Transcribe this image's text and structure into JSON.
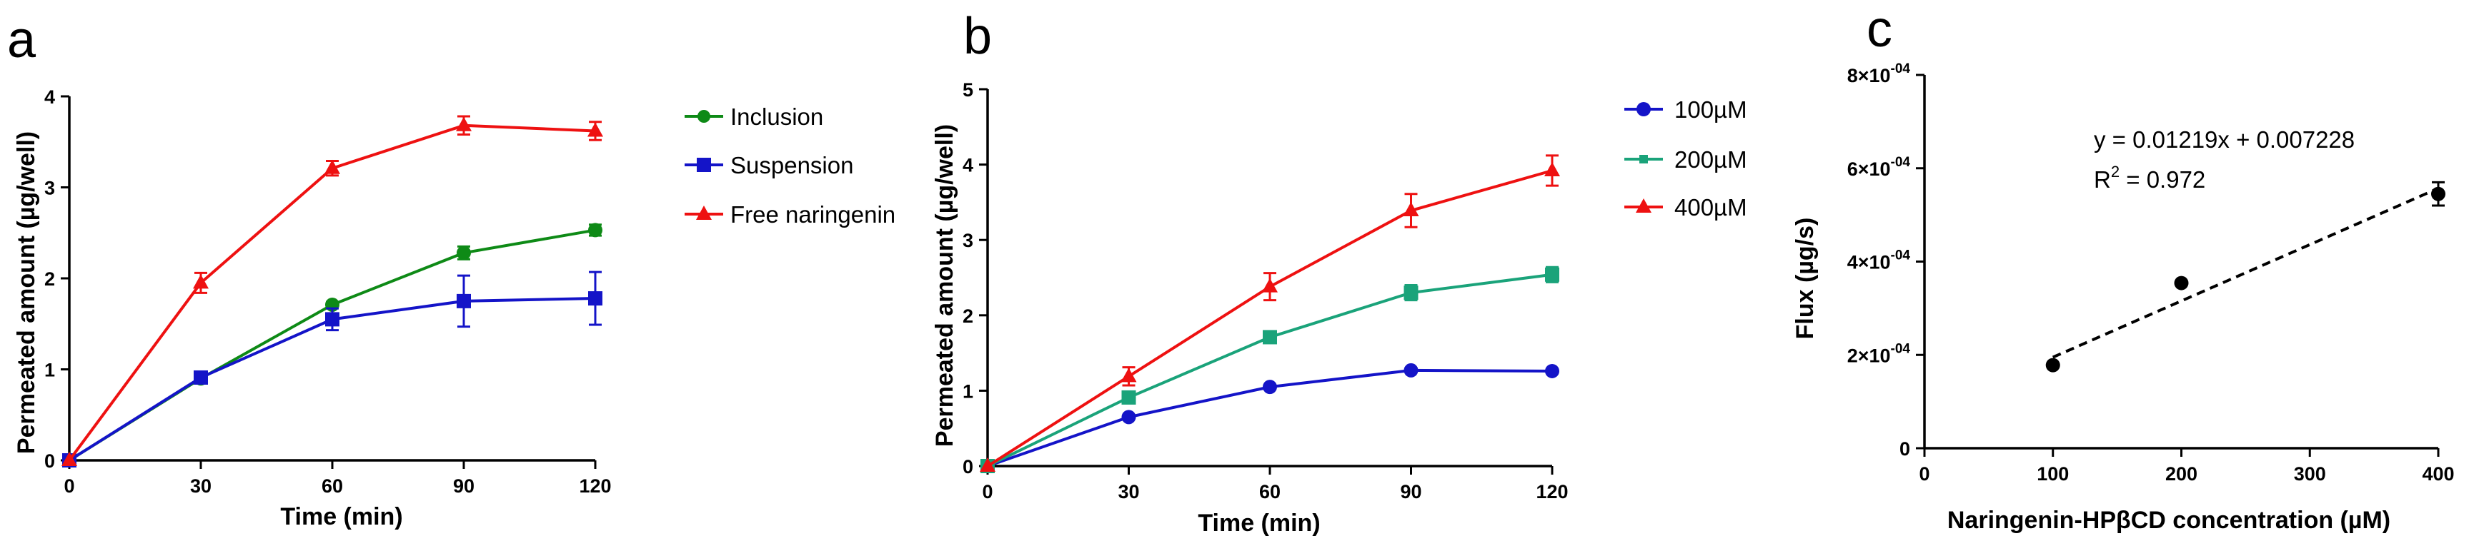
{
  "chart_data": [
    {
      "panel": "a",
      "type": "line",
      "xlabel": "Time (min)",
      "ylabel": "Permeated amount (µg/well)",
      "x": [
        0,
        30,
        60,
        90,
        120
      ],
      "xticks": [
        "0",
        "30",
        "60",
        "90",
        "120"
      ],
      "yticks": [
        "0",
        "1",
        "2",
        "3",
        "4"
      ],
      "xlim": [
        0,
        120
      ],
      "ylim": [
        0,
        4
      ],
      "grid": false,
      "legend_position": "right",
      "series": [
        {
          "name": "Inclusion",
          "color": "#0e8a16",
          "marker": "circle",
          "values": [
            0,
            0.9,
            1.71,
            2.28,
            2.53
          ],
          "errors": [
            0,
            0.03,
            0.03,
            0.07,
            0.06
          ]
        },
        {
          "name": "Suspension",
          "color": "#1414c8",
          "marker": "square",
          "values": [
            0,
            0.91,
            1.55,
            1.75,
            1.78
          ],
          "errors": [
            0,
            0.03,
            0.12,
            0.28,
            0.29
          ]
        },
        {
          "name": "Free naringenin",
          "color": "#ee1111",
          "marker": "triangle",
          "values": [
            0,
            1.95,
            3.21,
            3.68,
            3.62
          ],
          "errors": [
            0,
            0.11,
            0.08,
            0.1,
            0.1
          ]
        }
      ]
    },
    {
      "panel": "b",
      "type": "line",
      "xlabel": "Time (min)",
      "ylabel": "Permeated amount (µg/well)",
      "x": [
        0,
        30,
        60,
        90,
        120
      ],
      "xticks": [
        "0",
        "30",
        "60",
        "90",
        "120"
      ],
      "yticks": [
        "0",
        "1",
        "2",
        "3",
        "4",
        "5"
      ],
      "xlim": [
        0,
        120
      ],
      "ylim": [
        0,
        5
      ],
      "grid": false,
      "legend_position": "right",
      "series": [
        {
          "name": "100µM",
          "color": "#1414c8",
          "marker": "circle",
          "values": [
            0,
            0.65,
            1.05,
            1.27,
            1.26
          ],
          "errors": [
            0,
            0.02,
            0.02,
            0.03,
            0.03
          ]
        },
        {
          "name": "200µM",
          "color": "#1aa37a",
          "marker": "square",
          "values": [
            0,
            0.91,
            1.71,
            2.3,
            2.54
          ],
          "errors": [
            0,
            0.03,
            0.03,
            0.1,
            0.1
          ]
        },
        {
          "name": "400µM",
          "color": "#ee1111",
          "marker": "triangle",
          "values": [
            0,
            1.19,
            2.38,
            3.39,
            3.92
          ],
          "errors": [
            0,
            0.12,
            0.18,
            0.22,
            0.2
          ]
        }
      ]
    },
    {
      "panel": "c",
      "type": "scatter",
      "xlabel": "Naringenin-HPβCD concentration (µM)",
      "ylabel": "Flux (µg/s)",
      "x": [
        100,
        200,
        400
      ],
      "xticks": [
        "0",
        "100",
        "200",
        "300",
        "400"
      ],
      "yticks": [
        {
          "base": "0",
          "exp": ""
        },
        {
          "base": "2×10",
          "exp": "-04"
        },
        {
          "base": "4×10",
          "exp": "-04"
        },
        {
          "base": "6×10",
          "exp": "-04"
        },
        {
          "base": "8×10",
          "exp": "-04"
        }
      ],
      "xlim": [
        0,
        400
      ],
      "ylim": [
        0,
        0.0008
      ],
      "grid": false,
      "points": [
        {
          "x": 100,
          "y": 0.000178,
          "error": 0
        },
        {
          "x": 200,
          "y": 0.000354,
          "error": 0
        },
        {
          "x": 400,
          "y": 0.000545,
          "error": 2.5e-05
        }
      ],
      "fit": {
        "x": [
          100,
          400
        ],
        "y": [
          0.000195,
          0.000557
        ],
        "style": "dashed"
      },
      "equation": "y = 0.01219x + 0.007228",
      "r2_base": "R",
      "r2_exp": "2",
      "r2_value": " = 0.972",
      "marker_color": "#000000"
    }
  ]
}
